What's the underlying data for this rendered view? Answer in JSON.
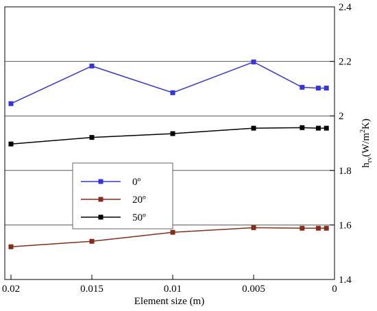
{
  "chart_data": {
    "type": "line",
    "xlabel": "Element size (m)",
    "ylabel": {
      "base": "h",
      "sub": "rv",
      "unit_pre": "(W/m",
      "unit_sup": "2",
      "unit_post": "K)"
    },
    "x_reversed": true,
    "xlim": [
      0.02,
      0
    ],
    "ylim": [
      1.4,
      2.4
    ],
    "x_ticks": [
      0.02,
      0.015,
      0.01,
      0.005,
      0
    ],
    "x_tick_labels": [
      "0.02",
      "0.015",
      "0.01",
      "0.005",
      "0"
    ],
    "y_ticks": [
      1.4,
      1.6,
      1.8,
      2.0,
      2.2,
      2.4
    ],
    "y_tick_labels": [
      "1.4",
      "1.6",
      "1.8",
      "2",
      "2.2",
      "2.4"
    ],
    "y_axis_side": "right",
    "gridlines_y": [
      1.6,
      1.8,
      2.0,
      2.2
    ],
    "legend_placement": "center-left",
    "series": [
      {
        "name": "0º",
        "color": "#3333ee",
        "x": [
          0.02,
          0.015,
          0.01,
          0.005,
          0.002,
          0.001,
          0.0005
        ],
        "y": [
          2.045,
          2.183,
          2.085,
          2.198,
          2.105,
          2.102,
          2.102
        ]
      },
      {
        "name": "20º",
        "color": "#8b2a14",
        "x": [
          0.02,
          0.015,
          0.01,
          0.005,
          0.002,
          0.001,
          0.0005
        ],
        "y": [
          1.52,
          1.54,
          1.573,
          1.59,
          1.588,
          1.588,
          1.588
        ]
      },
      {
        "name": "50º",
        "color": "#000000",
        "x": [
          0.02,
          0.015,
          0.01,
          0.005,
          0.002,
          0.001,
          0.0005
        ],
        "y": [
          1.897,
          1.921,
          1.935,
          1.955,
          1.957,
          1.955,
          1.955
        ]
      }
    ]
  }
}
